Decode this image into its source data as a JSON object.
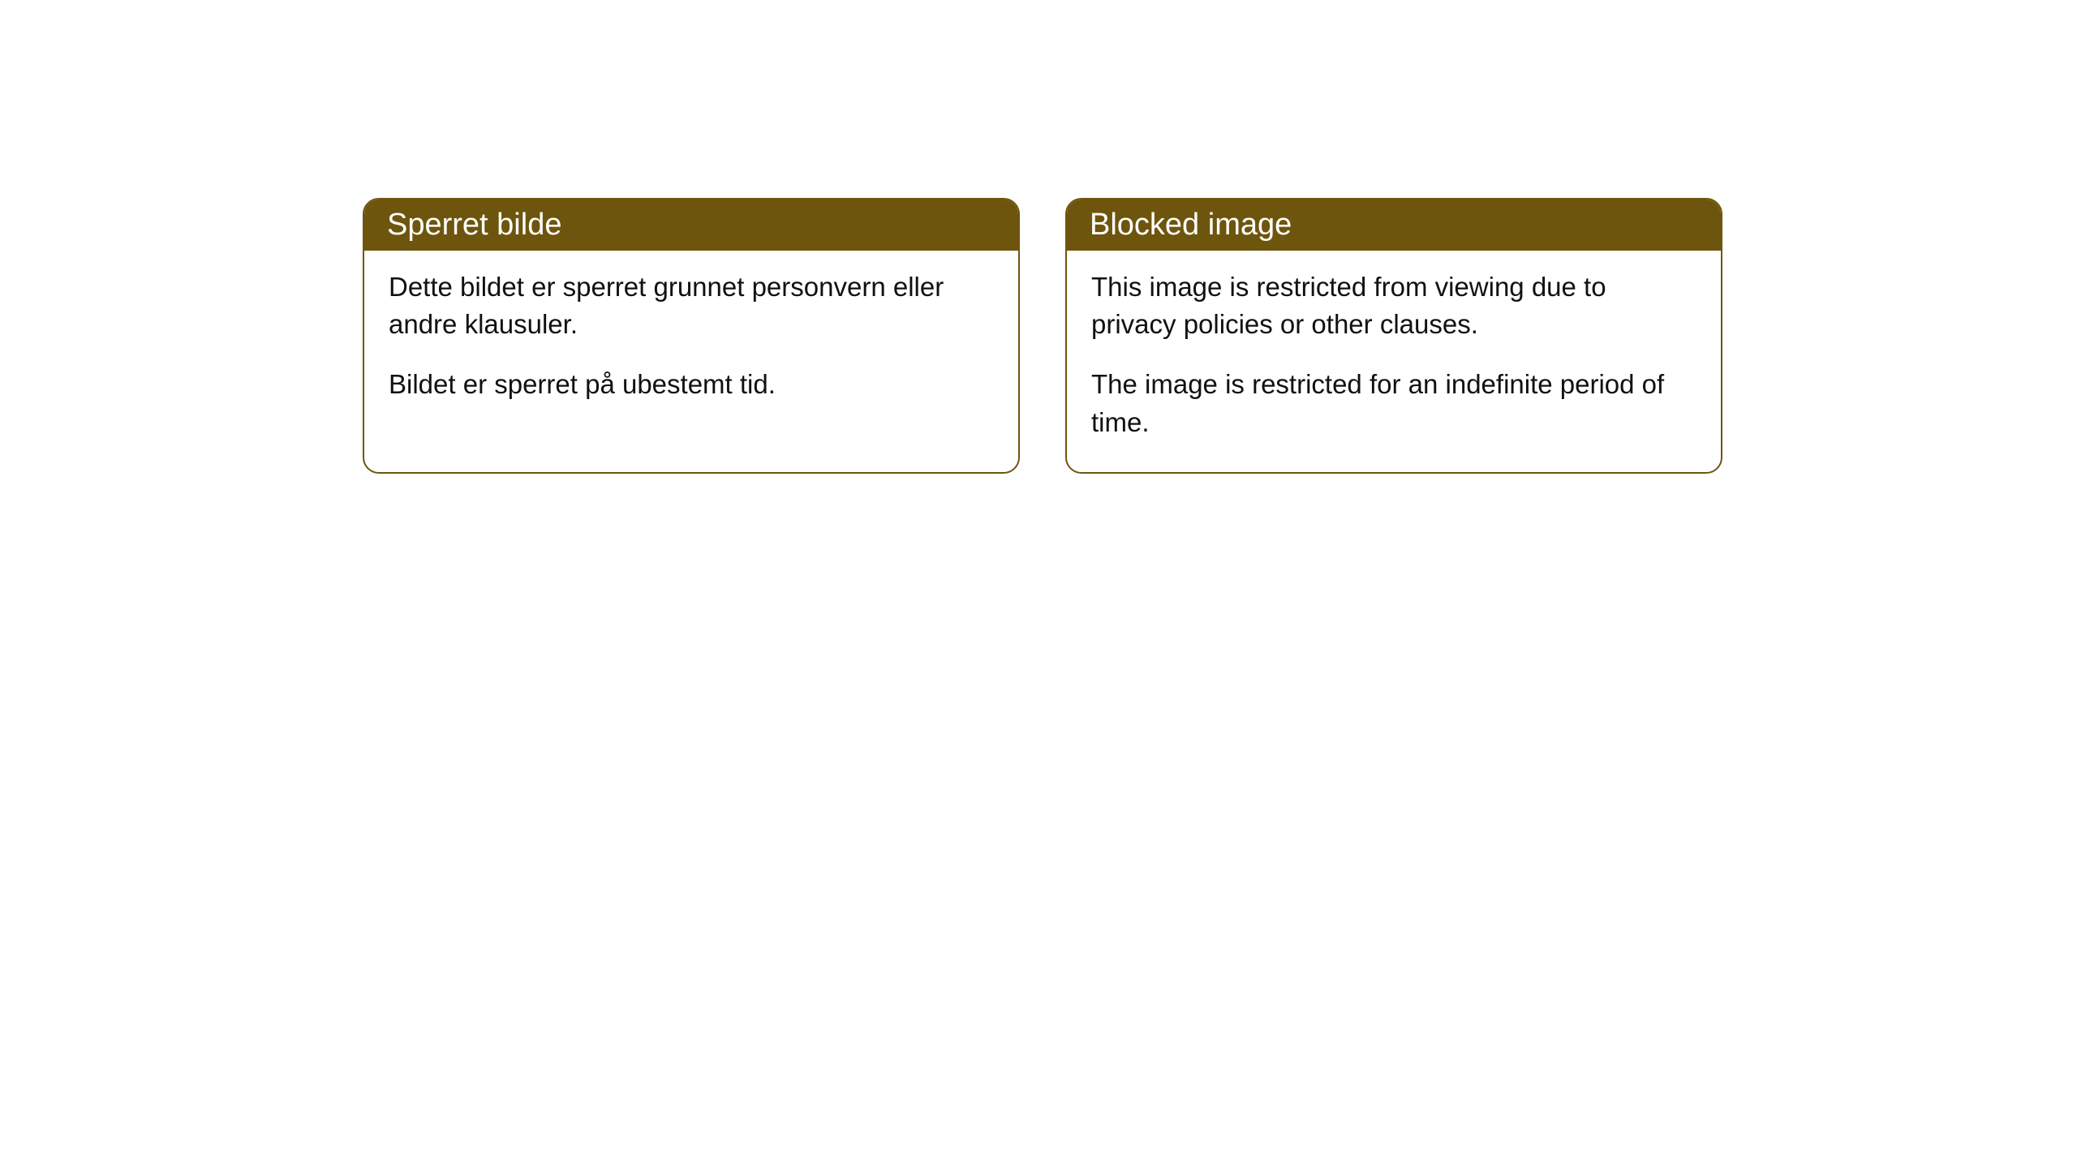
{
  "cards": [
    {
      "title": "Sperret bilde",
      "paragraph1": "Dette bildet er sperret grunnet personvern eller andre klausuler.",
      "paragraph2": "Bildet er sperret på ubestemt tid."
    },
    {
      "title": "Blocked image",
      "paragraph1": "This image is restricted from viewing due to privacy policies or other clauses.",
      "paragraph2": "The image is restricted for an indefinite period of time."
    }
  ],
  "styles": {
    "header_bg_color": "#6e550d",
    "header_text_color": "#ffffff",
    "border_color": "#6e550d",
    "body_bg_color": "#ffffff",
    "body_text_color": "#111111",
    "border_radius": 20,
    "header_font_size": 38,
    "body_font_size": 33
  }
}
